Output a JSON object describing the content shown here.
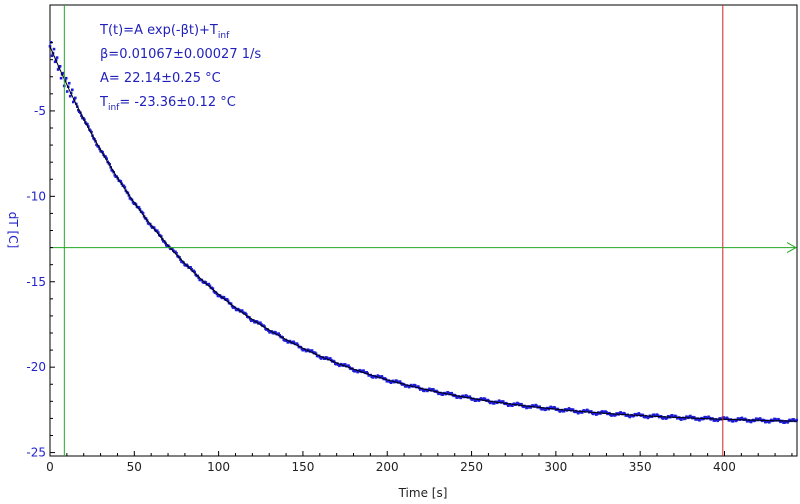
{
  "chart_data": {
    "type": "scatter",
    "title": "",
    "xlabel": "Time [s]",
    "ylabel": "dT [C]",
    "xlim": [
      0,
      443
    ],
    "ylim": [
      -25.2,
      1.2
    ],
    "x_ticks": [
      0,
      50,
      100,
      150,
      200,
      250,
      300,
      350,
      400
    ],
    "x_tick_labels": [
      "0",
      "50",
      "100",
      "150",
      "200",
      "250",
      "300",
      "350",
      "400"
    ],
    "y_ticks": [
      -5,
      -10,
      -15,
      -20,
      -25
    ],
    "y_tick_labels": [
      "-5",
      "-10",
      "-15",
      "-20",
      "-25"
    ],
    "grid": false,
    "fit_model": {
      "beta": 0.01067,
      "beta_err": 0.00027,
      "A": 22.14,
      "A_err": 0.25,
      "T_inf": -23.36,
      "T_inf_err": 0.12,
      "t0": 0
    },
    "data_range": [
      0,
      443
    ],
    "cursors": {
      "vertical_green_x": 8.5,
      "vertical_red_x": 399,
      "horizontal_green_y": -13.0
    },
    "colors": {
      "data": "#1c1cd6",
      "fit": "#000000",
      "cursor_green": "#22aa22",
      "cursor_red": "#cc2222",
      "axis_text_y": "#2222cc",
      "axis_text_x": "#222222",
      "annotation": "#2222bb"
    },
    "series": [
      {
        "name": "",
        "kind": "data",
        "x_step": 0.6
      },
      {
        "name": "",
        "kind": "fit"
      }
    ],
    "annotations": [
      {
        "main": "T(t)=A exp(-βt)+T",
        "sub": "inf",
        "rest": ""
      },
      {
        "main": "β=0.01067±0.00027 1/s",
        "sub": "",
        "rest": ""
      },
      {
        "main": "A= 22.14±0.25 °C",
        "sub": "",
        "rest": ""
      },
      {
        "main": "T",
        "sub": "inf",
        "rest": "= -23.36±0.12 °C"
      }
    ]
  }
}
